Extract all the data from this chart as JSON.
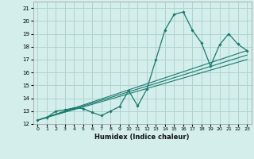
{
  "title": "",
  "xlabel": "Humidex (Indice chaleur)",
  "bg_color": "#d4eeec",
  "grid_color": "#aed4d0",
  "line_color": "#1a7a6e",
  "xlim": [
    -0.5,
    23.5
  ],
  "ylim": [
    12,
    21.5
  ],
  "yticks": [
    12,
    13,
    14,
    15,
    16,
    17,
    18,
    19,
    20,
    21
  ],
  "xticks": [
    0,
    1,
    2,
    3,
    4,
    5,
    6,
    7,
    8,
    9,
    10,
    11,
    12,
    13,
    14,
    15,
    16,
    17,
    18,
    19,
    20,
    21,
    22,
    23
  ],
  "line1_x": [
    0,
    1,
    2,
    3,
    4,
    5,
    6,
    7,
    8,
    9,
    10,
    11,
    12,
    13,
    14,
    15,
    16,
    17,
    18,
    19,
    20,
    21,
    22,
    23
  ],
  "line1_y": [
    12.3,
    12.5,
    13.0,
    13.1,
    13.25,
    13.2,
    12.9,
    12.65,
    13.0,
    13.35,
    14.6,
    13.4,
    14.7,
    17.0,
    19.3,
    20.5,
    20.7,
    19.3,
    18.3,
    16.5,
    18.15,
    19.0,
    18.2,
    17.7
  ],
  "line2_x": [
    0,
    23
  ],
  "line2_y": [
    12.3,
    17.7
  ],
  "line3_x": [
    0,
    23
  ],
  "line3_y": [
    12.3,
    17.35
  ],
  "line4_x": [
    0,
    23
  ],
  "line4_y": [
    12.3,
    17.0
  ]
}
